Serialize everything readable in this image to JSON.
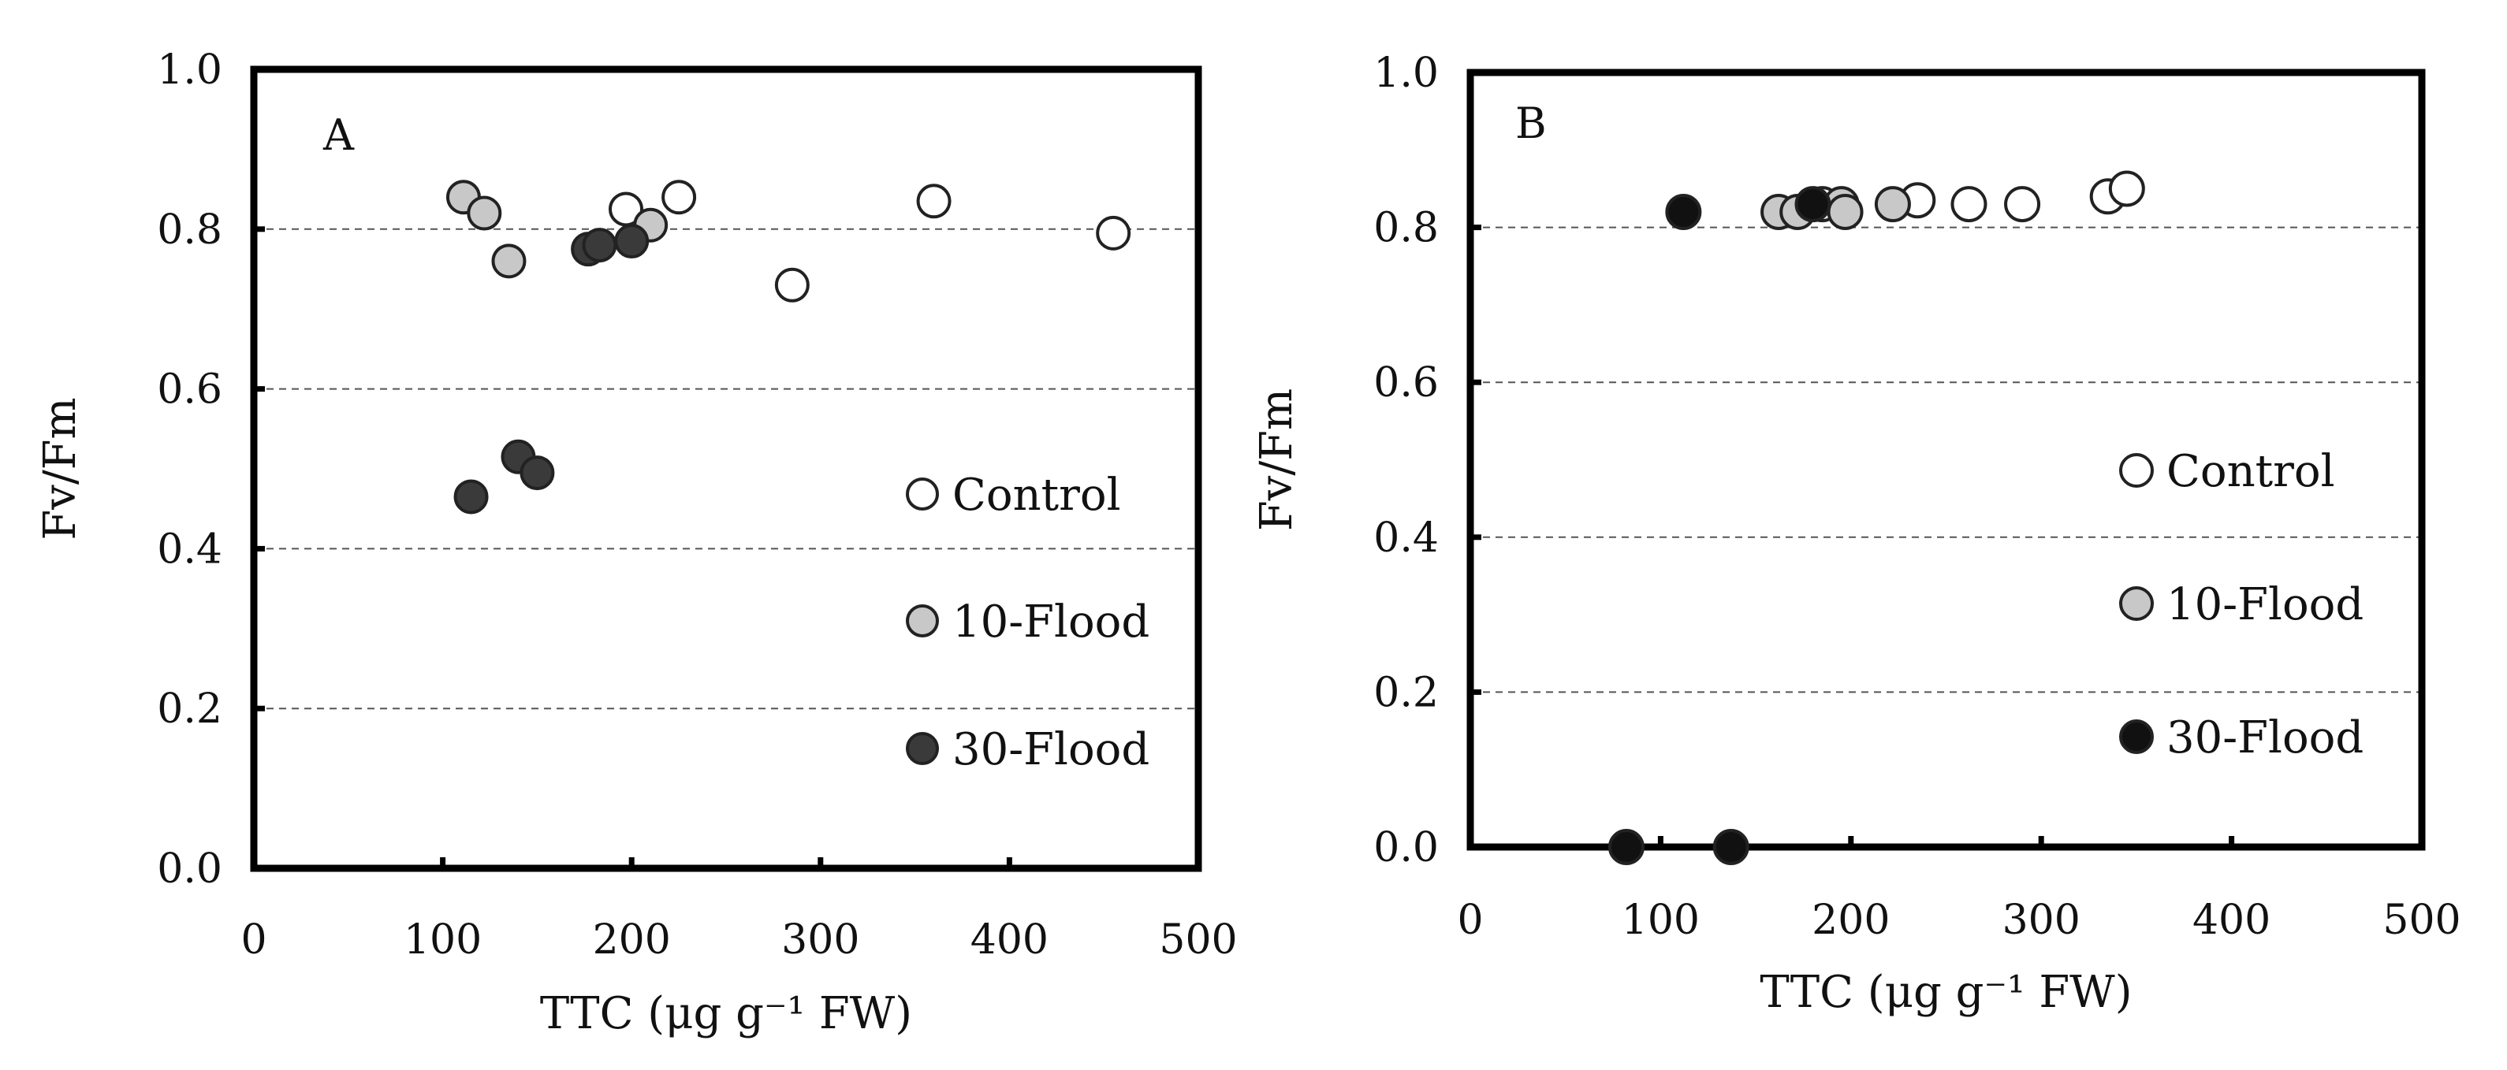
{
  "colors": {
    "control_fill": "#ffffff",
    "flood10_fill": "#c8c8c8",
    "flood30_fill": "#3a3a3a",
    "flood30_fill_b": "#111111",
    "marker_stroke": "#222222",
    "frame": "#000000",
    "gridline": "#555555"
  },
  "chart_data": [
    {
      "type": "scatter",
      "panel_label": "A",
      "xlabel": "TTC (μg g⁻¹ FW)",
      "ylabel": "Fv/Fm",
      "xlim": [
        0,
        500
      ],
      "ylim": [
        0,
        1.0
      ],
      "x_ticks": [
        0,
        100,
        200,
        300,
        400,
        500
      ],
      "x_tick_labels": [
        "0",
        "100",
        "200",
        "300",
        "400",
        "500"
      ],
      "y_ticks": [
        0,
        0.2,
        0.4,
        0.6,
        0.8,
        1.0
      ],
      "y_tick_labels": [
        "0.0",
        "0.2",
        "0.4",
        "0.6",
        "0.8",
        "1.0"
      ],
      "grid": "horizontal dashed",
      "legend_position": "right",
      "series": [
        {
          "name": "Control",
          "x": [
            197,
            225,
            285,
            360,
            455
          ],
          "y": [
            0.825,
            0.84,
            0.73,
            0.835,
            0.795
          ]
        },
        {
          "name": "10-Flood",
          "x": [
            111,
            122,
            135,
            210
          ],
          "y": [
            0.84,
            0.82,
            0.76,
            0.805
          ]
        },
        {
          "name": "30-Flood",
          "x": [
            115,
            140,
            150,
            177,
            183,
            200
          ],
          "y": [
            0.465,
            0.515,
            0.495,
            0.775,
            0.78,
            0.785
          ]
        }
      ]
    },
    {
      "type": "scatter",
      "panel_label": "B",
      "xlabel": "TTC (μg g⁻¹ FW)",
      "ylabel": "Fv/Fm",
      "xlim": [
        0,
        500
      ],
      "ylim": [
        0,
        1.0
      ],
      "x_ticks": [
        0,
        100,
        200,
        300,
        400,
        500
      ],
      "x_tick_labels": [
        "0",
        "100",
        "200",
        "300",
        "400",
        "500"
      ],
      "y_ticks": [
        0,
        0.2,
        0.4,
        0.6,
        0.8,
        1.0
      ],
      "y_tick_labels": [
        "0.0",
        "0.2",
        "0.4",
        "0.6",
        "0.8",
        "1.0"
      ],
      "grid": "horizontal dashed",
      "legend_position": "right",
      "series": [
        {
          "name": "Control",
          "x": [
            185,
            235,
            262,
            290,
            335,
            345
          ],
          "y": [
            0.83,
            0.835,
            0.83,
            0.83,
            0.84,
            0.85
          ]
        },
        {
          "name": "10-Flood",
          "x": [
            162,
            172,
            195,
            197,
            222
          ],
          "y": [
            0.82,
            0.82,
            0.83,
            0.82,
            0.83
          ]
        },
        {
          "name": "30-Flood",
          "x": [
            82,
            137,
            112,
            180
          ],
          "y": [
            0.0,
            0.0,
            0.82,
            0.83
          ]
        }
      ]
    }
  ]
}
